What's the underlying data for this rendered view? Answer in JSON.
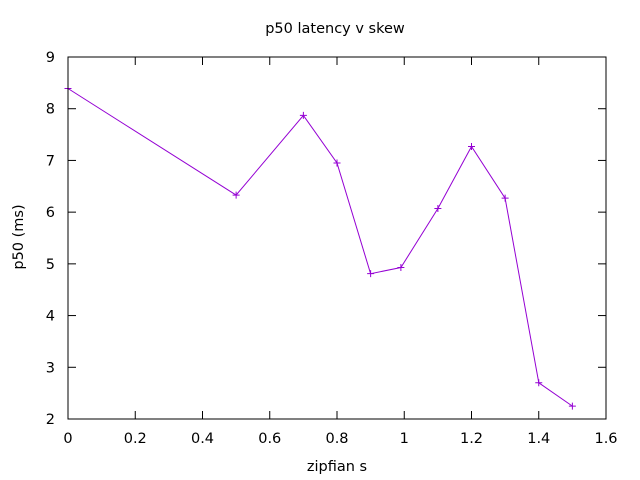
{
  "chart_data": {
    "type": "line",
    "title": "p50 latency v skew",
    "xlabel": "zipfian s",
    "ylabel": "p50 (ms)",
    "xlim": [
      0,
      1.6
    ],
    "ylim": [
      2,
      9
    ],
    "x_ticks": [
      0,
      0.2,
      0.4,
      0.6,
      0.8,
      1,
      1.2,
      1.4,
      1.6
    ],
    "x_tick_labels": [
      "0",
      "0.2",
      "0.4",
      "0.6",
      "0.8",
      "1",
      "1.2",
      "1.4",
      "1.6"
    ],
    "y_ticks": [
      2,
      3,
      4,
      5,
      6,
      7,
      8,
      9
    ],
    "y_tick_labels": [
      "2",
      "3",
      "4",
      "5",
      "6",
      "7",
      "8",
      "9"
    ],
    "grid": false,
    "legend": "none",
    "series": [
      {
        "color": "#9400d3",
        "marker": "plus",
        "points": [
          {
            "x": 0.0,
            "y": 8.39
          },
          {
            "x": 0.5,
            "y": 6.33
          },
          {
            "x": 0.7,
            "y": 7.87
          },
          {
            "x": 0.8,
            "y": 6.95
          },
          {
            "x": 0.9,
            "y": 4.81
          },
          {
            "x": 0.99,
            "y": 4.93
          },
          {
            "x": 1.1,
            "y": 6.07
          },
          {
            "x": 1.2,
            "y": 7.27
          },
          {
            "x": 1.3,
            "y": 6.27
          },
          {
            "x": 1.4,
            "y": 2.7
          },
          {
            "x": 1.5,
            "y": 2.25
          }
        ]
      }
    ]
  }
}
